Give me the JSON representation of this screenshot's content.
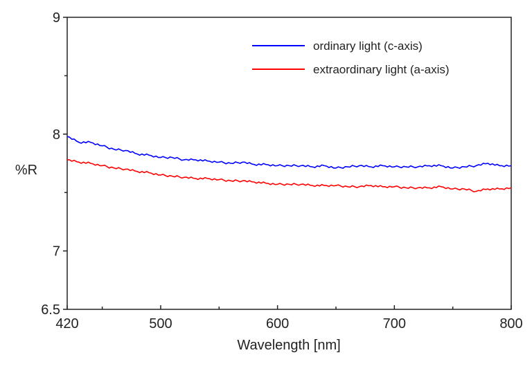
{
  "chart_data": {
    "type": "line",
    "title": "",
    "xlabel": "Wavelength [nm]",
    "ylabel": "%R",
    "xlim": [
      420,
      800
    ],
    "ylim": [
      6.5,
      9
    ],
    "xticks": [
      420,
      500,
      600,
      700,
      800
    ],
    "yticks": [
      6.5,
      7,
      8,
      9
    ],
    "grid": false,
    "legend_position": "top-right",
    "x": [
      420,
      430,
      440,
      450,
      460,
      470,
      480,
      490,
      500,
      510,
      520,
      530,
      540,
      550,
      560,
      570,
      580,
      590,
      600,
      610,
      620,
      630,
      640,
      650,
      660,
      670,
      680,
      690,
      700,
      710,
      720,
      730,
      740,
      750,
      760,
      770,
      780,
      790,
      800
    ],
    "series": [
      {
        "name": "ordinary light (c-axis)",
        "color": "#0000ff",
        "values": [
          7.98,
          7.93,
          7.93,
          7.9,
          7.87,
          7.86,
          7.83,
          7.82,
          7.8,
          7.8,
          7.78,
          7.78,
          7.77,
          7.76,
          7.75,
          7.76,
          7.74,
          7.74,
          7.73,
          7.73,
          7.73,
          7.72,
          7.73,
          7.71,
          7.72,
          7.73,
          7.72,
          7.73,
          7.72,
          7.72,
          7.72,
          7.73,
          7.73,
          7.71,
          7.72,
          7.73,
          7.75,
          7.73,
          7.73
        ]
      },
      {
        "name": "extraordinary light (a-axis)",
        "color": "#ff0000",
        "values": [
          7.78,
          7.76,
          7.75,
          7.73,
          7.71,
          7.7,
          7.68,
          7.67,
          7.65,
          7.64,
          7.63,
          7.62,
          7.62,
          7.61,
          7.6,
          7.6,
          7.59,
          7.58,
          7.57,
          7.57,
          7.57,
          7.56,
          7.56,
          7.56,
          7.55,
          7.55,
          7.56,
          7.55,
          7.55,
          7.54,
          7.54,
          7.54,
          7.55,
          7.53,
          7.53,
          7.51,
          7.53,
          7.53,
          7.54
        ]
      }
    ]
  }
}
